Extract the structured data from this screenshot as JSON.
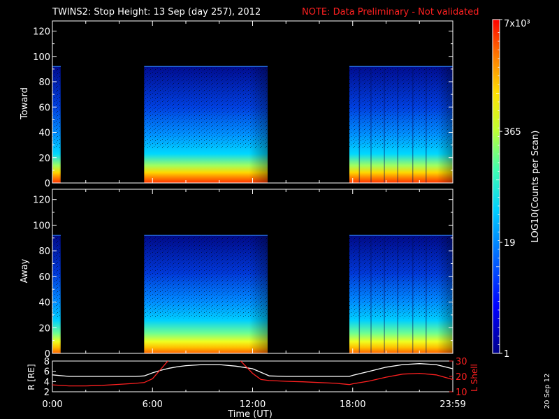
{
  "header": {
    "title": "TWINS2: Stop Height: 13 Sep (day 257), 2012",
    "note": "NOTE: Data Preliminary - Not validated"
  },
  "date_stamp": "20 Sep 12",
  "chart_data": [
    {
      "type": "heatmap",
      "panel": "toward",
      "ylabel": "Toward",
      "ylim": [
        0,
        128
      ],
      "yticks": [
        "0",
        "20",
        "40",
        "60",
        "80",
        "100",
        "120"
      ],
      "x_range_hours": [
        0,
        24
      ],
      "data_cap_height": 92,
      "data_intervals_hours": [
        [
          0,
          0.5
        ],
        [
          5.5,
          12.9
        ],
        [
          17.8,
          24
        ]
      ]
    },
    {
      "type": "heatmap",
      "panel": "away",
      "ylabel": "Away",
      "ylim": [
        0,
        128
      ],
      "yticks": [
        "0",
        "20",
        "40",
        "60",
        "80",
        "100",
        "120"
      ],
      "x_range_hours": [
        0,
        24
      ],
      "data_cap_height": 92,
      "data_intervals_hours": [
        [
          0,
          0.5
        ],
        [
          5.5,
          12.9
        ],
        [
          17.8,
          24
        ]
      ]
    },
    {
      "type": "line",
      "panel": "orbit",
      "xlabel": "Time (UT)",
      "xticks": [
        "0:00",
        "6:00",
        "12:00",
        "18:00",
        "23:59"
      ],
      "x_tick_hours": [
        0,
        6,
        12,
        18,
        24
      ],
      "left_axis": {
        "label": "R [RE]",
        "ylim": [
          2,
          8
        ],
        "yticks": [
          "2",
          "4",
          "6",
          "8"
        ]
      },
      "right_axis": {
        "label": "L Shell",
        "ylim": [
          10,
          30
        ],
        "yticks": [
          "10",
          "20",
          "30"
        ]
      },
      "series": [
        {
          "name": "R [RE]",
          "color": "#ffffff",
          "x": [
            0,
            1,
            2,
            3,
            4,
            5,
            5.5,
            6,
            6.5,
            7,
            7.5,
            8,
            9,
            10,
            11,
            12,
            12.5,
            13,
            14,
            15,
            16,
            17,
            17.8,
            18,
            19,
            20,
            21,
            22,
            23,
            24
          ],
          "y": [
            5.3,
            5.0,
            5.0,
            5.0,
            5.0,
            5.0,
            5.1,
            5.7,
            6.2,
            6.6,
            6.9,
            7.1,
            7.3,
            7.3,
            7.0,
            6.5,
            5.8,
            5.1,
            5.0,
            5.0,
            5.0,
            5.0,
            5.0,
            5.2,
            6.0,
            6.8,
            7.3,
            7.5,
            7.3,
            6.5
          ]
        },
        {
          "name": "L Shell",
          "color": "#ff2020",
          "x": [
            0,
            1,
            2,
            3,
            4,
            5,
            5.5,
            6,
            7,
            11.2,
            12,
            12.5,
            13,
            14,
            15,
            16,
            17,
            17.8,
            18,
            19,
            20,
            21,
            22,
            23,
            24
          ],
          "y": [
            14.5,
            13.8,
            13.8,
            14.2,
            14.8,
            15.5,
            16.0,
            18.5,
            31,
            31,
            22,
            18.0,
            17.3,
            16.8,
            16.5,
            16.0,
            15.5,
            14.7,
            15.2,
            17.0,
            19.5,
            21.5,
            22.0,
            21.0,
            18.0
          ]
        }
      ]
    },
    {
      "type": "heatmap",
      "panel": "colorbar",
      "label": "LOG10(Counts per Scan)",
      "ticks": [
        "1",
        "19",
        "365",
        "7x10³"
      ],
      "tick_values_log": [
        0,
        1.28,
        2.56,
        3.85
      ],
      "log_scale": true
    }
  ]
}
